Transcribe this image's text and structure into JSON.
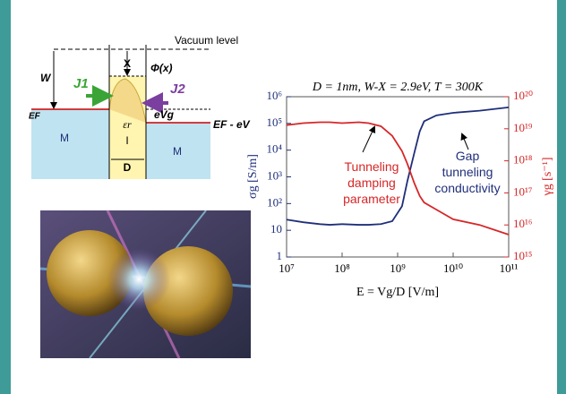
{
  "diagram": {
    "vacuum_label": "Vacuum level",
    "chi": "X",
    "phi": "Φ(x)",
    "work_function": "W",
    "j1": "J1",
    "j2": "J2",
    "fermi_left": "EF",
    "bias": "eVg",
    "fermi_right": "EF - eV",
    "permittivity": "εr",
    "insulator": "I",
    "metal_left": "M",
    "metal_right": "M",
    "width": "D"
  },
  "chart_data": {
    "type": "line",
    "title": "D = 1nm, W-X = 2.9eV, T = 300K",
    "x_label": "E = Vg/D [V/m]",
    "y_label": "σg [S/m]",
    "y2_label": "γg [s⁻¹]",
    "annotations": [
      {
        "text": "Tunneling\ndamping\nparameter",
        "color": "#d62728"
      },
      {
        "text": "Gap\ntunneling\nconductivity",
        "color": "#1f2f7a"
      }
    ],
    "log_x": true,
    "log_y": true,
    "log_y2": true,
    "x": [
      10000000,
      20000000,
      40000000,
      60000000,
      100000000,
      200000000,
      300000000,
      500000000,
      800000000,
      1200000000,
      1500000000,
      2000000000,
      2500000000,
      3000000000,
      5000000000,
      10000000000,
      30000000000,
      100000000000
    ],
    "series": [
      {
        "name": "σg",
        "color": "#1f2f7a",
        "values": [
          25,
          20,
          17,
          16,
          17,
          16,
          16,
          17,
          22,
          80,
          700,
          8000,
          50000,
          120000,
          200000,
          250000,
          300000,
          400000
        ]
      },
      {
        "name": "γg",
        "color": "#d62728",
        "axis": "y2",
        "values": [
          1.3e+19,
          1.5e+19,
          1.6e+19,
          1.6e+19,
          1.5e+19,
          1.6e+19,
          1.5e+19,
          1.2e+19,
          6e+18,
          2e+18,
          8e+17,
          2e+17,
          8e+16,
          5e+16,
          3e+16,
          1.5e+16,
          1e+16,
          5000000000000000.0
        ]
      }
    ],
    "xlim": [
      10000000,
      100000000000
    ],
    "xticks": [
      {
        "value": 10000000,
        "label": "10⁷"
      },
      {
        "value": 100000000,
        "label": "10⁸"
      },
      {
        "value": 1000000000,
        "label": "10⁹"
      },
      {
        "value": 10000000000,
        "label": "10¹⁰"
      },
      {
        "value": 100000000000,
        "label": "10¹¹"
      }
    ],
    "ylim": [
      1,
      1000000
    ],
    "yticks": [
      1,
      10,
      {
        "value": 100,
        "label": "10²"
      },
      {
        "value": 1000,
        "label": "10³"
      },
      {
        "value": 10000,
        "label": "10⁴"
      },
      {
        "value": 100000,
        "label": "10⁵"
      },
      {
        "value": 1000000,
        "label": "10⁶"
      }
    ],
    "y2lim": [
      1000000000000000.0,
      1e+20
    ],
    "y2ticks": [
      {
        "value": 1000000000000000.0,
        "label": "10¹⁵"
      },
      {
        "value": 1e+16,
        "label": "10¹⁶"
      },
      {
        "value": 1e+17,
        "label": "10¹⁷"
      },
      {
        "value": 1e+18,
        "label": "10¹⁸"
      },
      {
        "value": 1e+19,
        "label": "10¹⁹"
      },
      {
        "value": 1e+20,
        "label": "10²⁰"
      }
    ]
  }
}
